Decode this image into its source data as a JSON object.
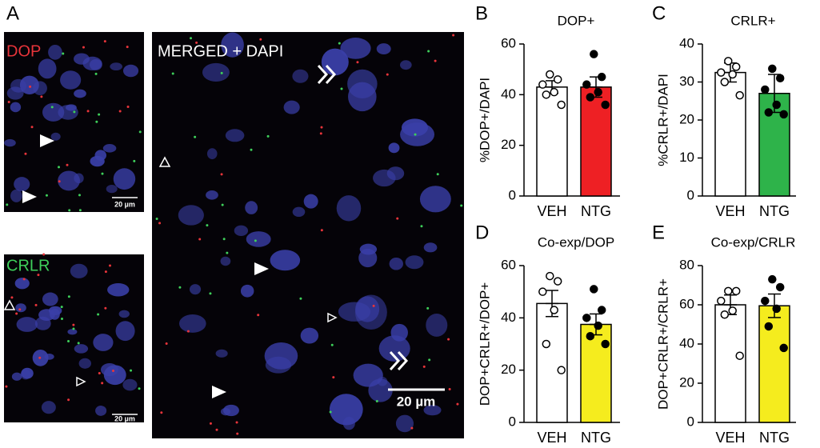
{
  "panel_labels": [
    "A",
    "B",
    "C",
    "D",
    "E"
  ],
  "images": [
    {
      "label": "DOP",
      "color": "#e8343a",
      "scale": "20 µm"
    },
    {
      "label": "CRLR",
      "color": "#3ecf5a",
      "scale": "20 µm"
    },
    {
      "label": "MERGED + DAPI",
      "color": "#ffffff",
      "scale": "20 µm"
    }
  ],
  "chart_data": [
    {
      "type": "bar",
      "title": "DOP+",
      "y_label": "%DOP+/DAPI",
      "categories": [
        "VEH",
        "NTG"
      ],
      "values": [
        43,
        43
      ],
      "errors": [
        2.5,
        4
      ],
      "colors": [
        "#ffffff",
        "#ee2024"
      ],
      "marker_fill": [
        "#ffffff",
        "#000000"
      ],
      "points": [
        [
          48,
          46,
          44,
          41,
          40,
          36
        ],
        [
          56,
          47,
          44,
          41,
          39,
          36
        ]
      ],
      "ylim": [
        0,
        60
      ],
      "yticks": [
        0,
        20,
        40,
        60
      ]
    },
    {
      "type": "bar",
      "title": "CRLR+",
      "y_label": "%CRLR+/DAPI",
      "categories": [
        "VEH",
        "NTG"
      ],
      "values": [
        32.5,
        27
      ],
      "errors": [
        2.5,
        5
      ],
      "colors": [
        "#ffffff",
        "#2eb34a"
      ],
      "marker_fill": [
        "#ffffff",
        "#000000"
      ],
      "points": [
        [
          35.5,
          34,
          32.5,
          32,
          30,
          26.5
        ],
        [
          33.5,
          31,
          28,
          24,
          22,
          21.5
        ]
      ],
      "ylim": [
        0,
        40
      ],
      "yticks": [
        0,
        10,
        20,
        30,
        40
      ]
    },
    {
      "type": "bar",
      "title": "Co-exp/DOP",
      "y_label": "DOP+CRLR+/DOP+",
      "categories": [
        "VEH",
        "NTG"
      ],
      "values": [
        45.5,
        37.5
      ],
      "errors": [
        5,
        4
      ],
      "colors": [
        "#ffffff",
        "#f5ec1e"
      ],
      "marker_fill": [
        "#ffffff",
        "#000000"
      ],
      "points": [
        [
          56,
          54,
          50,
          43,
          30,
          20
        ],
        [
          51,
          43,
          40,
          37,
          33,
          30
        ]
      ],
      "ylim": [
        0,
        60
      ],
      "yticks": [
        0,
        20,
        40,
        60
      ]
    },
    {
      "type": "bar",
      "title": "Co-exp/CRLR",
      "y_label": "DOP+CRLR+/CRLR+",
      "categories": [
        "VEH",
        "NTG"
      ],
      "values": [
        60,
        59.5
      ],
      "errors": [
        5,
        6
      ],
      "colors": [
        "#ffffff",
        "#f5ec1e"
      ],
      "marker_fill": [
        "#ffffff",
        "#000000"
      ],
      "points": [
        [
          67,
          67,
          62,
          57,
          55,
          34
        ],
        [
          73,
          69,
          62,
          58,
          49,
          38
        ]
      ],
      "ylim": [
        0,
        80
      ],
      "yticks": [
        0,
        20,
        40,
        60,
        80
      ]
    }
  ]
}
